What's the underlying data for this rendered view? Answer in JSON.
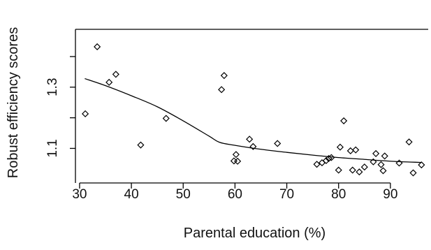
{
  "chart_data": {
    "type": "scatter",
    "xlabel": "Parental education (%)",
    "ylabel": "Robust efficiency scores",
    "xlim": [
      29.2,
      97.3
    ],
    "ylim": [
      0.987,
      1.489
    ],
    "x_ticks": [
      30,
      40,
      50,
      60,
      70,
      80,
      90
    ],
    "x_tick_labels": [
      "30",
      "40",
      "50",
      "60",
      "70",
      "80",
      "90"
    ],
    "y_ticks": [
      1.1,
      1.3
    ],
    "y_tick_labels": [
      "1.1",
      "1.3"
    ],
    "grid": false,
    "marker": "diamond-outline",
    "series": [
      {
        "points": [
          {
            "x": 31.1,
            "y": 1.213
          },
          {
            "x": 33.4,
            "y": 1.432
          },
          {
            "x": 35.7,
            "y": 1.316
          },
          {
            "x": 37.0,
            "y": 1.342
          },
          {
            "x": 41.8,
            "y": 1.111
          },
          {
            "x": 46.7,
            "y": 1.198
          },
          {
            "x": 57.4,
            "y": 1.292
          },
          {
            "x": 57.9,
            "y": 1.338
          },
          {
            "x": 59.8,
            "y": 1.059
          },
          {
            "x": 60.2,
            "y": 1.08
          },
          {
            "x": 60.5,
            "y": 1.058
          },
          {
            "x": 62.8,
            "y": 1.13
          },
          {
            "x": 63.5,
            "y": 1.106
          },
          {
            "x": 68.2,
            "y": 1.116
          },
          {
            "x": 75.8,
            "y": 1.048
          },
          {
            "x": 76.8,
            "y": 1.053
          },
          {
            "x": 77.6,
            "y": 1.06
          },
          {
            "x": 78.1,
            "y": 1.067
          },
          {
            "x": 78.6,
            "y": 1.07
          },
          {
            "x": 80.0,
            "y": 1.029
          },
          {
            "x": 80.3,
            "y": 1.104
          },
          {
            "x": 81.0,
            "y": 1.19
          },
          {
            "x": 82.3,
            "y": 1.092
          },
          {
            "x": 82.7,
            "y": 1.029
          },
          {
            "x": 83.3,
            "y": 1.095
          },
          {
            "x": 84.0,
            "y": 1.023
          },
          {
            "x": 85.0,
            "y": 1.039
          },
          {
            "x": 86.7,
            "y": 1.056
          },
          {
            "x": 87.2,
            "y": 1.083
          },
          {
            "x": 88.2,
            "y": 1.047
          },
          {
            "x": 88.6,
            "y": 1.027
          },
          {
            "x": 88.9,
            "y": 1.075
          },
          {
            "x": 91.7,
            "y": 1.052
          },
          {
            "x": 93.6,
            "y": 1.121
          },
          {
            "x": 94.4,
            "y": 1.02
          },
          {
            "x": 96.0,
            "y": 1.046
          }
        ]
      }
    ],
    "trend_line": {
      "type": "smoothed",
      "points": [
        {
          "x": 31.0,
          "y": 1.328
        },
        {
          "x": 35.0,
          "y": 1.305
        },
        {
          "x": 40.0,
          "y": 1.272
        },
        {
          "x": 45.0,
          "y": 1.236
        },
        {
          "x": 50.0,
          "y": 1.19
        },
        {
          "x": 55.0,
          "y": 1.14
        },
        {
          "x": 57.0,
          "y": 1.12
        },
        {
          "x": 60.0,
          "y": 1.11
        },
        {
          "x": 65.0,
          "y": 1.097
        },
        {
          "x": 70.0,
          "y": 1.087
        },
        {
          "x": 75.0,
          "y": 1.078
        },
        {
          "x": 80.0,
          "y": 1.07
        },
        {
          "x": 85.0,
          "y": 1.064
        },
        {
          "x": 90.0,
          "y": 1.058
        },
        {
          "x": 96.0,
          "y": 1.054
        }
      ]
    }
  }
}
